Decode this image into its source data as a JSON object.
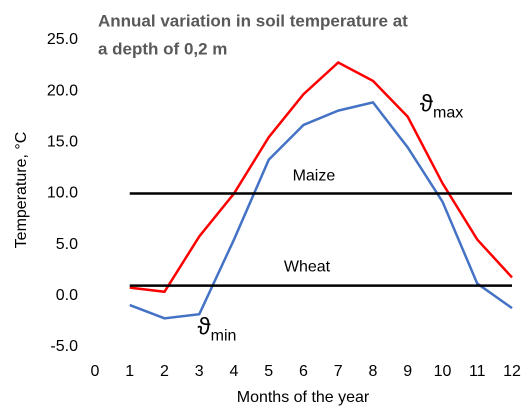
{
  "chart_data": {
    "type": "line",
    "title": [
      "Annual variation in soil temperature at",
      "a depth of 0,2 m"
    ],
    "x_label": "Months of the year",
    "y_label": "Temperature, °C",
    "xlim": [
      0,
      12
    ],
    "xticks": [
      0,
      1,
      2,
      3,
      4,
      5,
      6,
      7,
      8,
      9,
      10,
      11,
      12
    ],
    "ylim": [
      -5,
      25
    ],
    "yticks": [
      {
        "value": -5,
        "label": "-5.0"
      },
      {
        "value": 0,
        "label": "0.0"
      },
      {
        "value": 5,
        "label": "5.0"
      },
      {
        "value": 10,
        "label": "10.0"
      },
      {
        "value": 15,
        "label": "15.0"
      },
      {
        "value": 20,
        "label": "20.0"
      },
      {
        "value": 25,
        "label": "25.0"
      }
    ],
    "grid": false,
    "series": [
      {
        "name": "ϑmax",
        "color": "#ff0000",
        "x": [
          1,
          2,
          3,
          4,
          5,
          6,
          7,
          8,
          9,
          10,
          11,
          12
        ],
        "values": [
          0.8,
          0.4,
          5.8,
          10.0,
          15.5,
          19.7,
          22.8,
          21.0,
          17.5,
          11.0,
          5.5,
          1.8
        ]
      },
      {
        "name": "ϑmin",
        "color": "#4472c4",
        "x": [
          1,
          2,
          3,
          4,
          5,
          6,
          7,
          8,
          9,
          10,
          11,
          12
        ],
        "values": [
          -0.9,
          -2.2,
          -1.8,
          5.5,
          13.3,
          16.7,
          18.1,
          18.9,
          14.5,
          9.2,
          1.2,
          -1.2
        ]
      },
      {
        "name": "Maize",
        "color": "#000000",
        "x": [
          1,
          12
        ],
        "values": [
          10,
          10
        ]
      },
      {
        "name": "Wheat",
        "color": "#000000",
        "x": [
          1,
          12
        ],
        "values": [
          1,
          1
        ]
      }
    ],
    "annotations": [
      {
        "text": "ϑ",
        "sub": "max"
      },
      {
        "text": "ϑ",
        "sub": "min"
      }
    ]
  }
}
